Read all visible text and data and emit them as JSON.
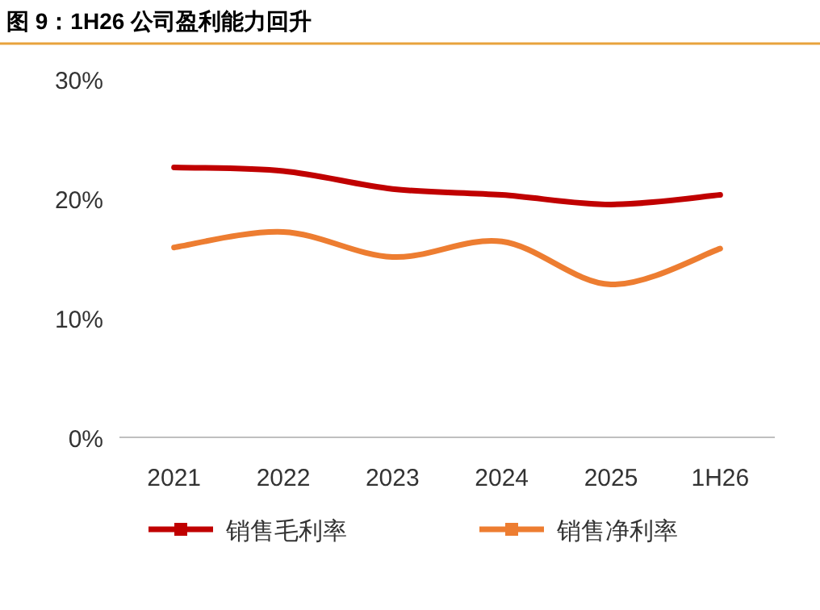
{
  "chart_data": {
    "type": "line",
    "title": "图 9：1H26 公司盈利能力回升",
    "categories": [
      "2021",
      "2022",
      "2023",
      "2024",
      "2025",
      "1H26"
    ],
    "series": [
      {
        "name": "销售毛利率",
        "color": "#c00000",
        "values": [
          22.6,
          22.3,
          20.8,
          20.3,
          19.5,
          20.3
        ]
      },
      {
        "name": "销售净利率",
        "color": "#ed7d31",
        "values": [
          15.9,
          17.2,
          15.1,
          16.4,
          12.8,
          15.8
        ]
      }
    ],
    "ylim": [
      0,
      30
    ],
    "yticks": [
      {
        "value": 0,
        "label": "0%"
      },
      {
        "value": 10,
        "label": "10%"
      },
      {
        "value": 20,
        "label": "20%"
      },
      {
        "value": 30,
        "label": "30%"
      }
    ],
    "legend": "bottom",
    "grid": false
  }
}
